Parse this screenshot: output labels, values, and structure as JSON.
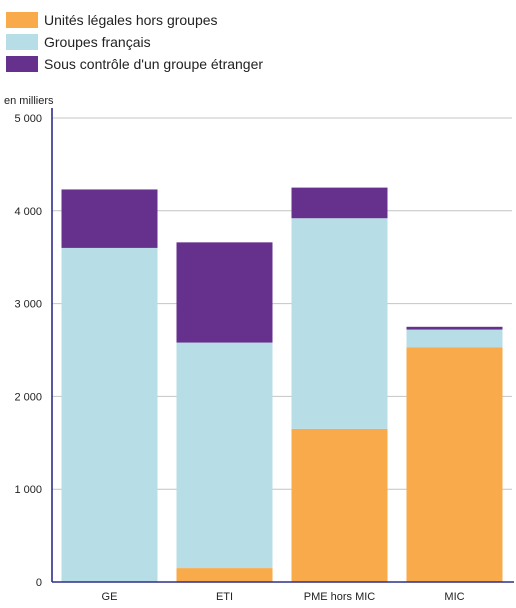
{
  "chart_data": {
    "type": "bar",
    "stacked": true,
    "unit_label": "en milliers",
    "categories": [
      "GE",
      "ETI",
      "PME hors MIC",
      "MIC"
    ],
    "series": [
      {
        "name": "Unités légales hors groupes",
        "color": "#f9aa4a",
        "values": [
          0,
          150,
          1650,
          2530
        ]
      },
      {
        "name": "Groupes français",
        "color": "#b7dde6",
        "values": [
          3600,
          2430,
          2270,
          190
        ]
      },
      {
        "name": "Sous contrôle d'un groupe étranger",
        "color": "#66318c",
        "values": [
          630,
          1080,
          330,
          30
        ]
      }
    ],
    "yticks": [
      0,
      1000,
      2000,
      3000,
      4000,
      5000
    ],
    "ytick_labels": [
      "0",
      "1 000",
      "2 000",
      "3 000",
      "4 000",
      "5 000"
    ],
    "ylim": [
      0,
      5000
    ],
    "grid": true,
    "legend_position": "top-left"
  }
}
